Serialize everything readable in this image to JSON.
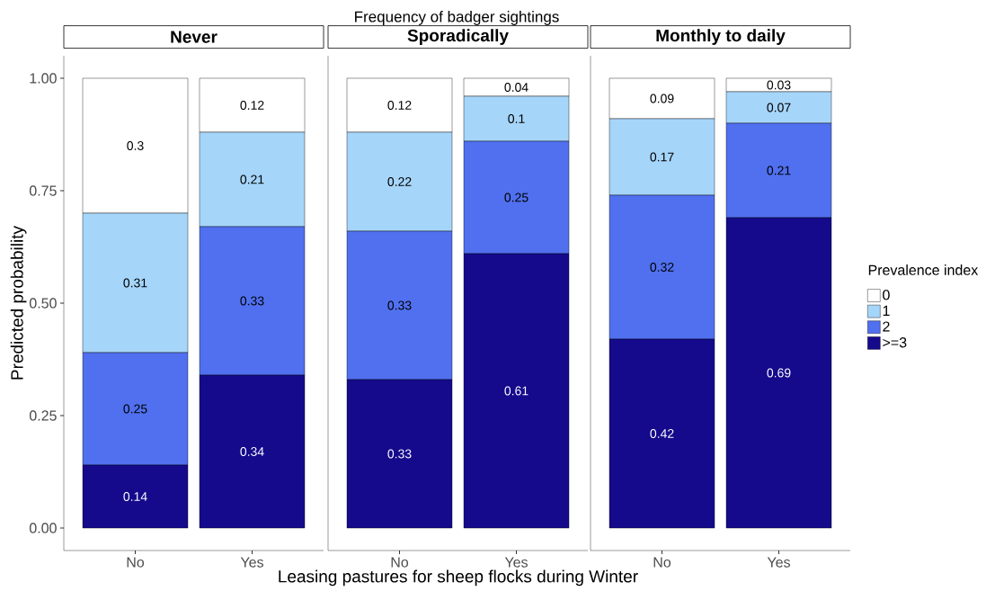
{
  "chart_data": [
    {
      "type": "bar",
      "stacked": true,
      "title": "Never",
      "ylabel": "Predicted probability",
      "annotations": [
        "Frequency of badger sightings"
      ],
      "categories": [
        "No",
        "Yes"
      ],
      "ylim": [
        -0.05,
        1.05
      ],
      "yticks": [
        {
          "value": 0,
          "label": "0.00"
        },
        {
          "value": 0.25,
          "label": "0.25"
        },
        {
          "value": 0.5,
          "label": "0.50"
        },
        {
          "value": 0.75,
          "label": "0.75"
        },
        {
          "value": 1,
          "label": "1.00"
        }
      ],
      "data_labels": true,
      "series": [
        {
          "color": "#150a8c",
          "values": [
            0.14,
            0.34
          ]
        },
        {
          "color": "#5070ef",
          "values": [
            0.25,
            0.33
          ]
        },
        {
          "color": "#a6d5fa",
          "values": [
            0.31,
            0.21
          ]
        },
        {
          "color": "#ffffff",
          "values": [
            0.3,
            0.12
          ]
        }
      ]
    },
    {
      "type": "bar",
      "stacked": true,
      "title": "Sporadically",
      "xlabel": "Leasing pastures for sheep flocks during Winter",
      "categories": [
        "No",
        "Yes"
      ],
      "ylim": [
        -0.05,
        1.05
      ],
      "tick_labels": "x",
      "data_labels": true,
      "series": [
        {
          "color": "#150a8c",
          "values": [
            0.33,
            0.61
          ]
        },
        {
          "color": "#5070ef",
          "values": [
            0.33,
            0.25
          ]
        },
        {
          "color": "#a6d5fa",
          "values": [
            0.22,
            0.1
          ]
        },
        {
          "color": "#ffffff",
          "values": [
            0.12,
            0.04
          ]
        }
      ]
    },
    {
      "type": "bar",
      "stacked": true,
      "title": "Monthly to daily",
      "categories": [
        "No",
        "Yes"
      ],
      "ylim": [
        -0.05,
        1.05
      ],
      "tick_labels": "x",
      "data_labels": true,
      "legend": "right",
      "legend_title": "Prevalence index",
      "series": [
        {
          "name": ">=3",
          "color": "#150a8c",
          "values": [
            0.42,
            0.69
          ]
        },
        {
          "name": "2",
          "color": "#5070ef",
          "values": [
            0.32,
            0.21
          ]
        },
        {
          "name": "1",
          "color": "#a6d5fa",
          "values": [
            0.17,
            0.07
          ]
        },
        {
          "name": "0",
          "color": "#ffffff",
          "values": [
            0.09,
            0.03
          ]
        }
      ]
    }
  ]
}
